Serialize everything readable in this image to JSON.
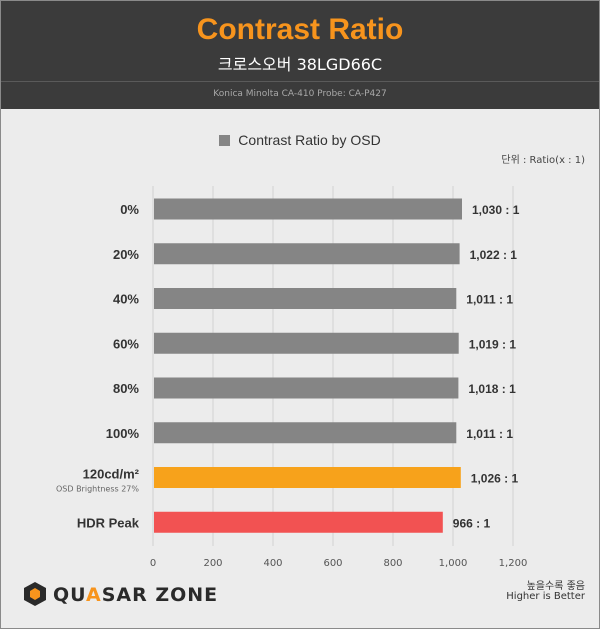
{
  "header": {
    "title": "Contrast Ratio",
    "subtitle": "크로스오버 38LGD66C",
    "probe": "Konica Minolta CA-410 Probe: CA-P427"
  },
  "unit_note": "단위 : Ratio(x : 1)",
  "footer": {
    "note_ko": "높을수록 좋음",
    "note_en": "Higher is Better"
  },
  "logo": {
    "text_before": "QU",
    "text_accent": "A",
    "text_after": "SAR ZONE"
  },
  "colors": {
    "gray_bar": "#858585",
    "orange_bar": "#f7a21b",
    "red_bar": "#f25252",
    "header_bg": "#3b3b3b",
    "title": "#f7941d"
  },
  "chart_data": {
    "type": "bar",
    "orientation": "horizontal",
    "legend": "Contrast Ratio by OSD",
    "legend_position": "top-center",
    "categories": [
      "0%",
      "20%",
      "40%",
      "60%",
      "80%",
      "100%",
      "120cd/m²",
      "HDR Peak"
    ],
    "category_sublabels": [
      "",
      "",
      "",
      "",
      "",
      "",
      "OSD Brightness 27%",
      ""
    ],
    "values": [
      1030,
      1022,
      1011,
      1019,
      1018,
      1011,
      1026,
      966
    ],
    "value_labels": [
      "1,030 : 1",
      "1,022 : 1",
      "1,011 : 1",
      "1,019 : 1",
      "1,018 : 1",
      "1,011 : 1",
      "1,026 : 1",
      "966 : 1"
    ],
    "bar_colors": [
      "#858585",
      "#858585",
      "#858585",
      "#858585",
      "#858585",
      "#858585",
      "#f7a21b",
      "#f25252"
    ],
    "xlim": [
      0,
      1200
    ],
    "xticks": [
      0,
      200,
      400,
      600,
      800,
      1000,
      1200
    ],
    "xtick_labels": [
      "0",
      "200",
      "400",
      "600",
      "800",
      "1,000",
      "1,200"
    ],
    "grid": "vertical"
  }
}
